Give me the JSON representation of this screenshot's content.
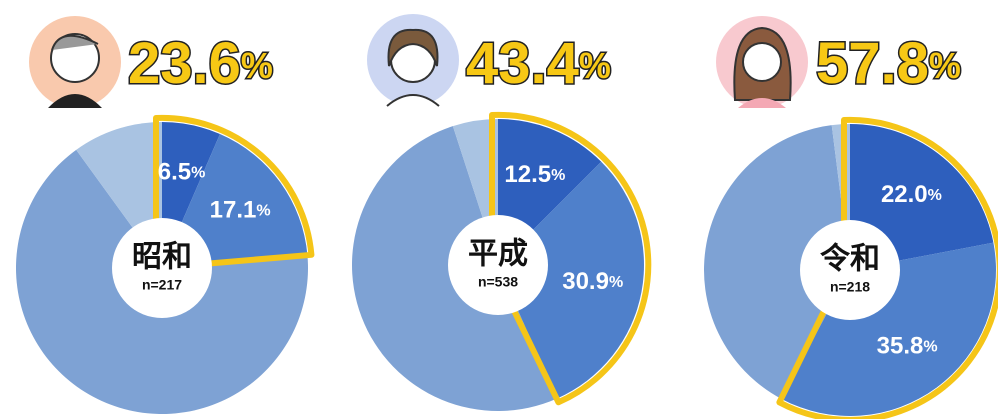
{
  "chart_data": [
    {
      "type": "pie",
      "headline": "23.6%",
      "title": "昭和",
      "subtitle": "n=217",
      "values": [
        6.5,
        17.1,
        66.4,
        10
      ],
      "value_labels": [
        "6.5%",
        "17.1%",
        null,
        null
      ],
      "colors": [
        "#2e5fbd",
        "#4f80cb",
        "#7ea2d4",
        "#a9c3e2"
      ],
      "highlight_color": "#f5c518"
    },
    {
      "type": "pie",
      "headline": "43.4%",
      "title": "平成",
      "subtitle": "n=538",
      "values": [
        12.5,
        30.9,
        51.6,
        5
      ],
      "value_labels": [
        "12.5%",
        "30.9%",
        null,
        null
      ],
      "colors": [
        "#2e5fbd",
        "#4f80cb",
        "#7ea2d4",
        "#a9c3e2"
      ],
      "highlight_color": "#f5c518"
    },
    {
      "type": "pie",
      "headline": "57.8%",
      "title": "令和",
      "subtitle": "n=218",
      "values": [
        22.0,
        35.8,
        40.2,
        2
      ],
      "value_labels": [
        "22.0%",
        "35.8%",
        null,
        null
      ],
      "colors": [
        "#2e5fbd",
        "#4f80cb",
        "#7ea2d4",
        "#a9c3e2"
      ],
      "highlight_color": "#f5c518"
    }
  ]
}
